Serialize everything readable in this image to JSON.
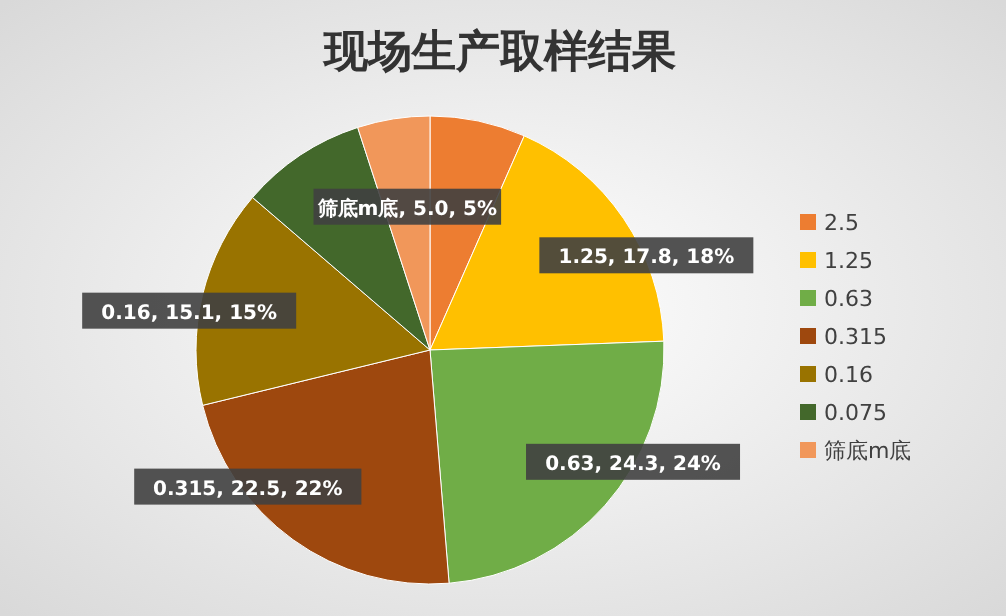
{
  "chart_data": {
    "type": "pie",
    "title": "现场生产取样结果",
    "categories": [
      "2.5",
      "1.25",
      "0.63",
      "0.315",
      "0.16",
      "0.075",
      "筛底m底"
    ],
    "values": [
      6.6,
      17.8,
      24.3,
      22.5,
      15.1,
      8.7,
      5.0
    ],
    "colors": [
      "#ed7d31",
      "#ffc000",
      "#70ad47",
      "#9e480e",
      "#997300",
      "#43682b",
      "#f1975a"
    ],
    "value_labels": [
      null,
      "1.25, 17.8, 18%",
      "0.63, 24.3, 24%",
      "0.315, 22.5, 22%",
      "0.16, 15.1, 15%",
      null,
      "筛底m底, 5.0, 5%"
    ],
    "legend": "right"
  }
}
